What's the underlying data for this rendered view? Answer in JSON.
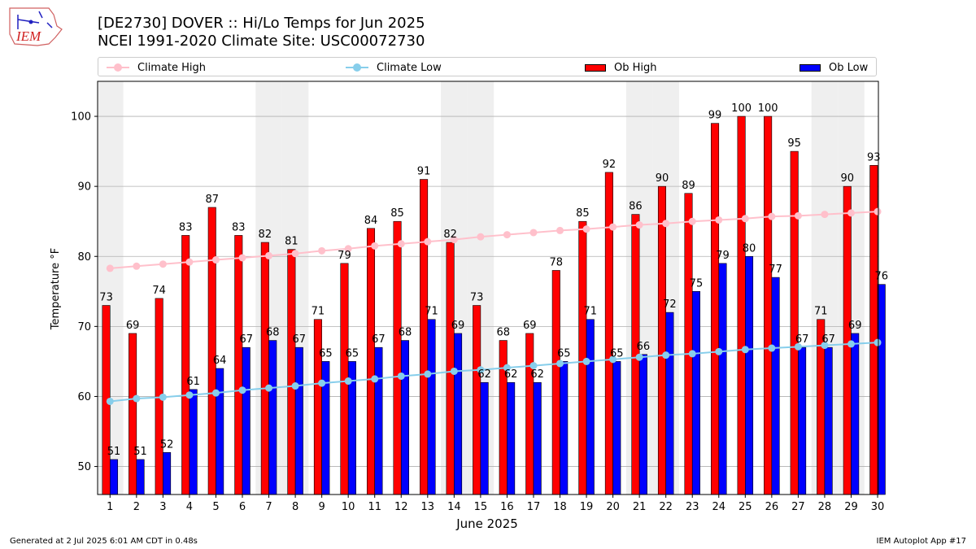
{
  "header": {
    "title_line1": "[DE2730] DOVER :: Hi/Lo Temps for Jun 2025",
    "title_line2": "NCEI 1991-2020 Climate Site: USC00072730",
    "logo_text": "IEM"
  },
  "legend": {
    "climate_high": "Climate High",
    "climate_low": "Climate Low",
    "ob_high": "Ob High",
    "ob_low": "Ob Low"
  },
  "colors": {
    "ob_high": "#ff0000",
    "ob_low": "#0000ff",
    "climate_high": "#ffc0cb",
    "climate_low": "#87ceeb",
    "weekend_shade": "#efefef"
  },
  "chart_data": {
    "type": "bar",
    "xlabel": "June 2025",
    "ylabel": "Temperature °F",
    "ylim": [
      46,
      105
    ],
    "yticks": [
      50,
      60,
      70,
      80,
      90,
      100
    ],
    "grid": true,
    "legend_position": "top",
    "categories": [
      1,
      2,
      3,
      4,
      5,
      6,
      7,
      8,
      9,
      10,
      11,
      12,
      13,
      14,
      15,
      16,
      17,
      18,
      19,
      20,
      21,
      22,
      23,
      24,
      25,
      26,
      27,
      28,
      29,
      30
    ],
    "weekend_days": [
      1,
      7,
      8,
      14,
      15,
      21,
      22,
      28,
      29
    ],
    "series": [
      {
        "name": "Ob High",
        "kind": "bar",
        "values": [
          73,
          69,
          74,
          83,
          87,
          83,
          82,
          81,
          71,
          79,
          84,
          85,
          91,
          82,
          73,
          68,
          69,
          78,
          85,
          92,
          86,
          90,
          89,
          99,
          100,
          100,
          95,
          71,
          90,
          93
        ]
      },
      {
        "name": "Ob Low",
        "kind": "bar",
        "values": [
          51,
          51,
          52,
          61,
          64,
          67,
          68,
          67,
          65,
          65,
          67,
          68,
          71,
          69,
          62,
          62,
          62,
          65,
          71,
          65,
          66,
          72,
          75,
          79,
          80,
          77,
          67,
          67,
          69,
          76
        ]
      },
      {
        "name": "Climate High",
        "kind": "line",
        "values": [
          78.3,
          78.6,
          78.9,
          79.2,
          79.5,
          79.8,
          80.1,
          80.4,
          80.8,
          81.1,
          81.5,
          81.8,
          82.1,
          82.4,
          82.8,
          83.1,
          83.4,
          83.7,
          83.9,
          84.2,
          84.5,
          84.7,
          85.0,
          85.2,
          85.4,
          85.7,
          85.8,
          86.0,
          86.2,
          86.4
        ]
      },
      {
        "name": "Climate Low",
        "kind": "line",
        "values": [
          59.3,
          59.7,
          59.9,
          60.2,
          60.5,
          60.9,
          61.2,
          61.5,
          61.9,
          62.2,
          62.5,
          62.9,
          63.2,
          63.6,
          63.8,
          64.1,
          64.4,
          64.7,
          65.0,
          65.3,
          65.6,
          65.9,
          66.1,
          66.4,
          66.7,
          66.9,
          67.1,
          67.3,
          67.5,
          67.7
        ]
      }
    ]
  },
  "footer": {
    "generated": "Generated at 2 Jul 2025 6:01 AM CDT in 0.48s",
    "app": "IEM Autoplot App #17"
  }
}
